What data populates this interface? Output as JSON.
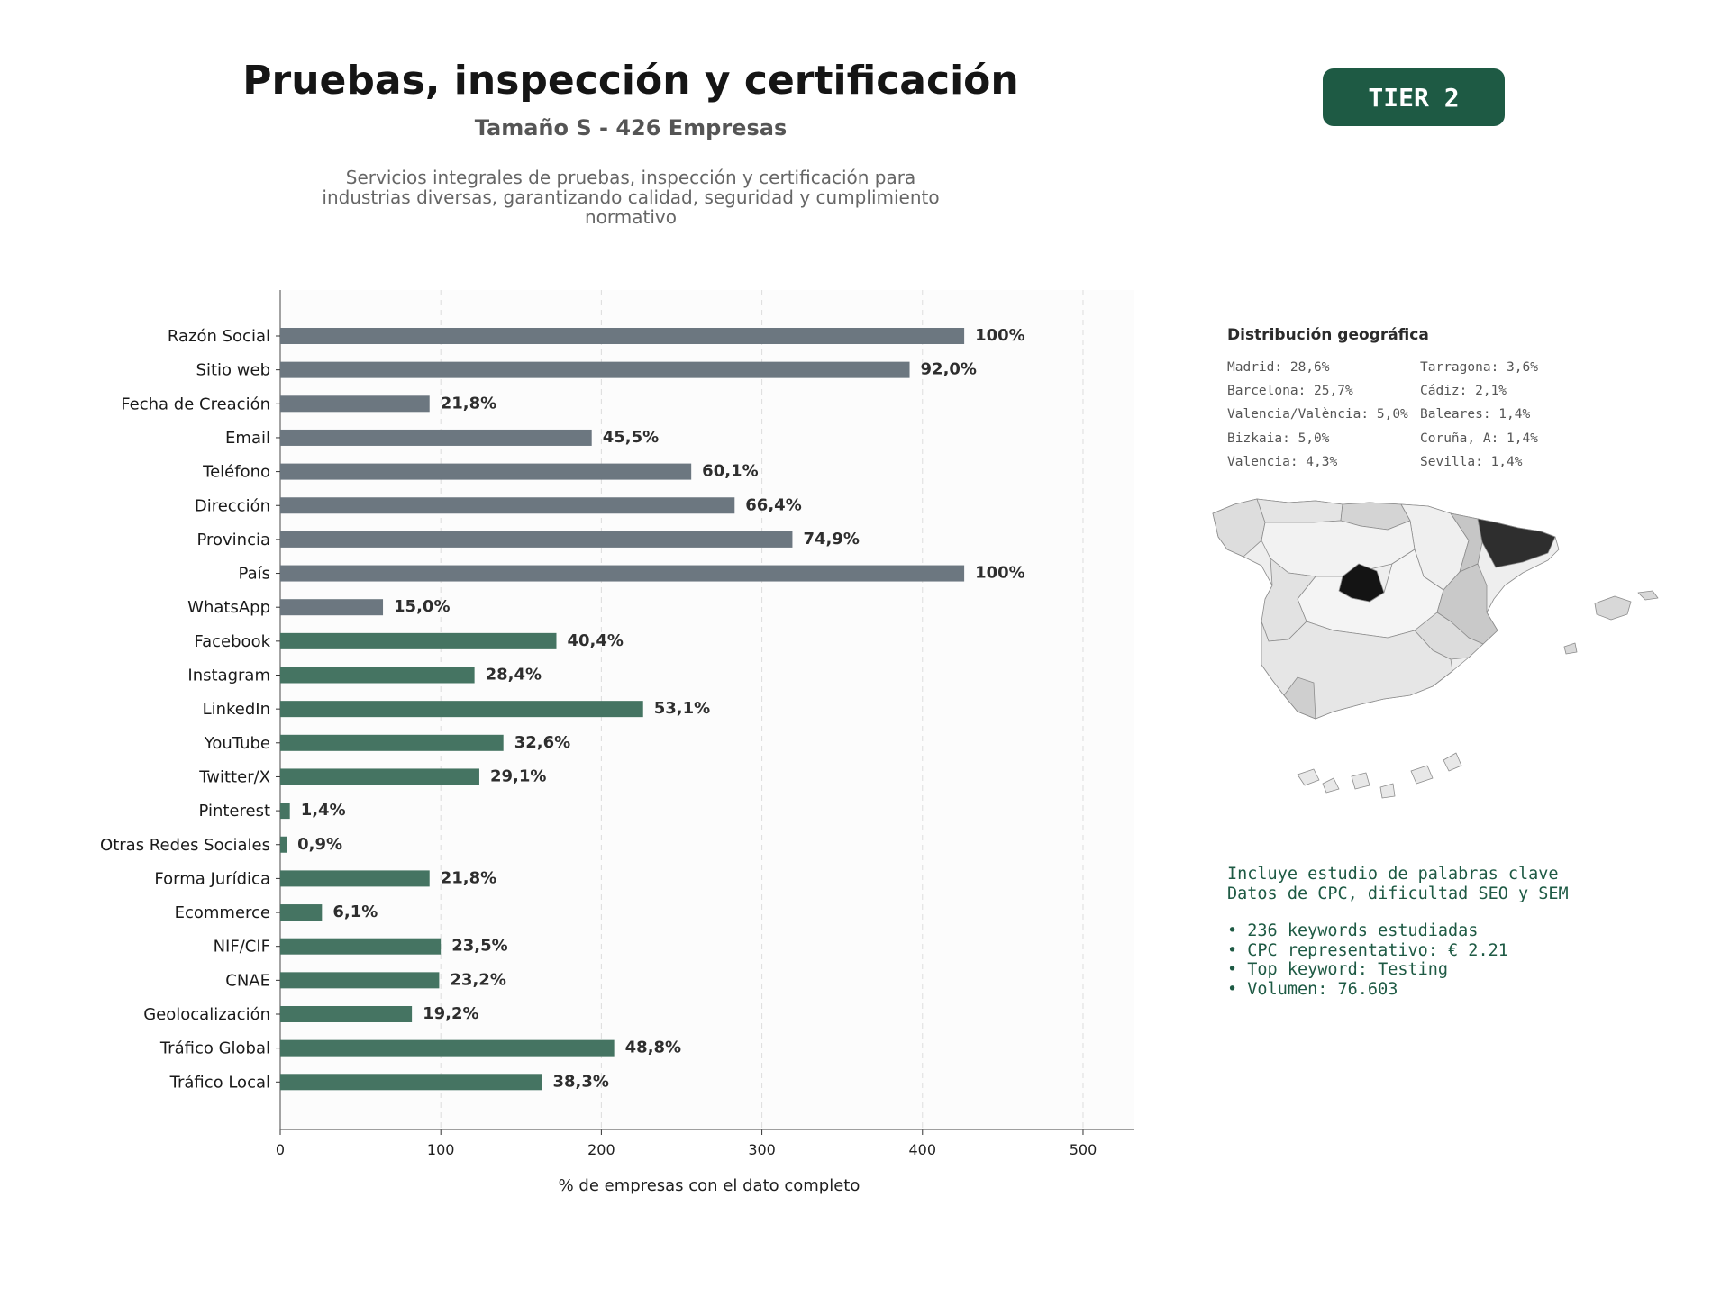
{
  "header": {
    "title": "Pruebas, inspección y certificación",
    "subtitle": "Tamaño S - 426 Empresas",
    "description_lines": [
      "Servicios integrales de pruebas, inspección y certificación para",
      "industrias diversas, garantizando calidad, seguridad y cumplimiento",
      "normativo"
    ],
    "tier": "TIER 2"
  },
  "colors": {
    "tier_bg": "#1e5a44",
    "bar_basic": "#6c7780",
    "bar_digital": "#457462",
    "map_highlight": "#141414"
  },
  "chart_data": {
    "type": "bar",
    "orientation": "horizontal",
    "xlabel": "% de empresas con el dato completo",
    "ylabel": "",
    "xlim": [
      0,
      532
    ],
    "xticks": [
      0,
      100,
      200,
      300,
      400,
      500
    ],
    "grid": "vertical dashed",
    "categories": [
      "Razón Social",
      "Sitio web",
      "Fecha de Creación",
      "Email",
      "Teléfono",
      "Dirección",
      "Provincia",
      "País",
      "WhatsApp",
      "Facebook",
      "Instagram",
      "LinkedIn",
      "YouTube",
      "Twitter/X",
      "Pinterest",
      "Otras Redes Sociales",
      "Forma Jurídica",
      "Ecommerce",
      "NIF/CIF",
      "CNAE",
      "Geolocalización",
      "Tráfico Global",
      "Tráfico Local"
    ],
    "values": [
      426,
      392,
      93,
      194,
      256,
      283,
      319,
      426,
      64,
      172,
      121,
      226,
      139,
      124,
      6,
      4,
      93,
      26,
      100,
      99,
      82,
      208,
      163
    ],
    "labels": [
      "100%",
      "92,0%",
      "21,8%",
      "45,5%",
      "60,1%",
      "66,4%",
      "74,9%",
      "100%",
      "15,0%",
      "40,4%",
      "28,4%",
      "53,1%",
      "32,6%",
      "29,1%",
      "1,4%",
      "0,9%",
      "21,8%",
      "6,1%",
      "23,5%",
      "23,2%",
      "19,2%",
      "48,8%",
      "38,3%"
    ],
    "groups": [
      "basic",
      "basic",
      "basic",
      "basic",
      "basic",
      "basic",
      "basic",
      "basic",
      "basic",
      "digital",
      "digital",
      "digital",
      "digital",
      "digital",
      "digital",
      "digital",
      "digital",
      "digital",
      "digital",
      "digital",
      "digital",
      "digital",
      "digital"
    ]
  },
  "geo": {
    "title": "Distribución geográfica",
    "left": [
      "Madrid: 28,6%",
      "Barcelona: 25,7%",
      "Valencia/València: 5,0%",
      "Bizkaia: 5,0%",
      "Valencia: 4,3%"
    ],
    "right": [
      "Tarragona: 3,6%",
      "Cádiz: 2,1%",
      "Baleares: 1,4%",
      "Coruña, A: 1,4%",
      "Sevilla: 1,4%"
    ]
  },
  "keywords": {
    "intro": [
      "Incluye estudio de palabras clave",
      "Datos de CPC, dificultad SEO y SEM"
    ],
    "bullets": [
      "• 236 keywords estudiadas",
      "• CPC representativo: € 2.21",
      "• Top keyword: Testing",
      "• Volumen: 76.603"
    ]
  }
}
